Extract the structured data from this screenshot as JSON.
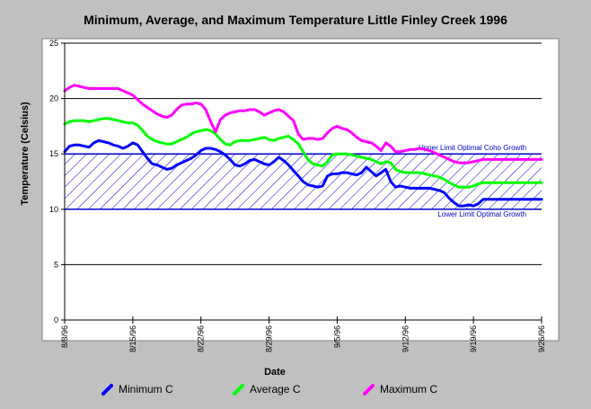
{
  "chart_data": {
    "type": "line",
    "title": "Minimum, Average, and Maximum Temperature Little Finley Creek 1996",
    "xlabel": "Date",
    "ylabel": "Temperature (Celsius)",
    "ylim": [
      0,
      25
    ],
    "yticks": [
      0,
      5,
      10,
      15,
      20,
      25
    ],
    "x_start": "8/8/96",
    "x_end": "9/26/96",
    "xticks": [
      {
        "label": "8/8/96",
        "day": 0
      },
      {
        "label": "8/15/96",
        "day": 7
      },
      {
        "label": "8/22/96",
        "day": 14
      },
      {
        "label": "8/29/96",
        "day": 21
      },
      {
        "label": "9/5/96",
        "day": 28
      },
      {
        "label": "9/12/96",
        "day": 35
      },
      {
        "label": "9/19/96",
        "day": 42
      },
      {
        "label": "9/26/96",
        "day": 49
      }
    ],
    "grid": "horizontal",
    "legend_position": "bottom",
    "bands": [
      {
        "name": "Optimal Coho Growth",
        "lower": 10,
        "upper": 15,
        "fill": "hatched",
        "color": "#0000cc",
        "upper_label": "Upper Limit Optimal Coho Growth",
        "lower_label": "Lower Limit Optimal Growth"
      }
    ],
    "series": [
      {
        "name": "Minimum C",
        "color": "#0000ff",
        "x": [
          0,
          0.5,
          1,
          1.5,
          2,
          2.5,
          3,
          3.5,
          4,
          4.5,
          5,
          5.5,
          6,
          6.5,
          7,
          7.5,
          8,
          8.5,
          9,
          9.5,
          10,
          10.5,
          11,
          11.5,
          12,
          12.5,
          13,
          13.5,
          14,
          14.5,
          15,
          15.5,
          16,
          16.5,
          17,
          17.5,
          18,
          18.5,
          19,
          19.5,
          20,
          20.5,
          21,
          21.5,
          22,
          22.5,
          23,
          23.5,
          24,
          24.5,
          25,
          25.5,
          26,
          26.5,
          27,
          27.5,
          28,
          28.5,
          29,
          29.5,
          30,
          30.5,
          31,
          31.5,
          32,
          32.5,
          33,
          33.5,
          34,
          34.5,
          35,
          35.5,
          36,
          36.5,
          37,
          37.5,
          38,
          38.5,
          39,
          39.5,
          40,
          40.5,
          41,
          41.5,
          42,
          42.5,
          43,
          43.5,
          44,
          44.5,
          45,
          45.5,
          46,
          46.5,
          47,
          47.5,
          48,
          48.5,
          49
        ],
        "values": [
          15.2,
          15.7,
          15.8,
          15.8,
          15.7,
          15.6,
          16.0,
          16.2,
          16.1,
          16.0,
          15.8,
          15.7,
          15.5,
          15.7,
          16.0,
          15.8,
          15.2,
          14.6,
          14.1,
          14.0,
          13.8,
          13.6,
          13.7,
          14.0,
          14.2,
          14.4,
          14.6,
          14.9,
          15.3,
          15.5,
          15.5,
          15.4,
          15.2,
          14.9,
          14.5,
          14.0,
          13.9,
          14.1,
          14.4,
          14.5,
          14.3,
          14.1,
          14.0,
          14.3,
          14.7,
          14.4,
          14.0,
          13.5,
          13.0,
          12.5,
          12.2,
          12.1,
          12.0,
          12.1,
          13.0,
          13.2,
          13.2,
          13.3,
          13.3,
          13.2,
          13.1,
          13.3,
          13.8,
          13.4,
          13.0,
          13.3,
          13.6,
          12.5,
          12.0,
          12.1,
          12.0,
          11.9,
          11.9,
          11.9,
          11.9,
          11.9,
          11.8,
          11.7,
          11.5,
          11.0,
          10.6,
          10.3,
          10.3,
          10.4,
          10.3,
          10.5,
          10.9,
          10.9,
          10.9,
          10.9,
          10.9,
          10.9,
          10.9,
          10.9,
          10.9,
          10.9,
          10.9,
          10.9,
          10.9
        ]
      },
      {
        "name": "Average C",
        "color": "#00ff00",
        "x": [
          0,
          0.5,
          1,
          1.5,
          2,
          2.5,
          3,
          3.5,
          4,
          4.5,
          5,
          5.5,
          6,
          6.5,
          7,
          7.5,
          8,
          8.5,
          9,
          9.5,
          10,
          10.5,
          11,
          11.5,
          12,
          12.5,
          13,
          13.5,
          14,
          14.5,
          15,
          15.5,
          16,
          16.5,
          17,
          17.5,
          18,
          18.5,
          19,
          19.5,
          20,
          20.5,
          21,
          21.5,
          22,
          22.5,
          23,
          23.5,
          24,
          24.5,
          25,
          25.5,
          26,
          26.5,
          27,
          27.5,
          28,
          28.5,
          29,
          29.5,
          30,
          30.5,
          31,
          31.5,
          32,
          32.5,
          33,
          33.5,
          34,
          34.5,
          35,
          35.5,
          36,
          36.5,
          37,
          37.5,
          38,
          38.5,
          39,
          39.5,
          40,
          40.5,
          41,
          41.5,
          42,
          42.5,
          43,
          43.5,
          44,
          44.5,
          45,
          45.5,
          46,
          46.5,
          47,
          47.5,
          48,
          48.5,
          49
        ],
        "values": [
          17.7,
          17.9,
          18.0,
          18.0,
          18.0,
          17.9,
          18.0,
          18.1,
          18.2,
          18.2,
          18.1,
          18.0,
          17.9,
          17.8,
          17.8,
          17.6,
          17.1,
          16.6,
          16.3,
          16.1,
          16.0,
          15.9,
          15.9,
          16.1,
          16.3,
          16.5,
          16.8,
          17.0,
          17.1,
          17.2,
          17.1,
          16.8,
          16.3,
          15.9,
          15.8,
          16.1,
          16.2,
          16.2,
          16.2,
          16.3,
          16.4,
          16.5,
          16.3,
          16.2,
          16.4,
          16.5,
          16.6,
          16.3,
          15.9,
          15.2,
          14.5,
          14.1,
          14.0,
          13.9,
          14.3,
          14.9,
          15.0,
          15.0,
          15.0,
          14.9,
          14.8,
          14.7,
          14.6,
          14.5,
          14.3,
          14.1,
          14.3,
          14.2,
          13.6,
          13.4,
          13.3,
          13.3,
          13.3,
          13.3,
          13.2,
          13.1,
          13.0,
          12.9,
          12.7,
          12.4,
          12.2,
          12.0,
          12.0,
          12.0,
          12.1,
          12.3,
          12.4,
          12.4,
          12.4,
          12.4,
          12.4,
          12.4,
          12.4,
          12.4,
          12.4,
          12.4,
          12.4,
          12.4,
          12.4
        ]
      },
      {
        "name": "Maximum C",
        "color": "#ff00ff",
        "x": [
          0,
          0.5,
          1,
          1.5,
          2,
          2.5,
          3,
          3.5,
          4,
          4.5,
          5,
          5.5,
          6,
          6.5,
          7,
          7.5,
          8,
          8.5,
          9,
          9.5,
          10,
          10.5,
          11,
          11.5,
          12,
          12.5,
          13,
          13.5,
          14,
          14.5,
          15,
          15.5,
          16,
          16.5,
          17,
          17.5,
          18,
          18.5,
          19,
          19.5,
          20,
          20.5,
          21,
          21.5,
          22,
          22.5,
          23,
          23.5,
          24,
          24.5,
          25,
          25.5,
          26,
          26.5,
          27,
          27.5,
          28,
          28.5,
          29,
          29.5,
          30,
          30.5,
          31,
          31.5,
          32,
          32.5,
          33,
          33.5,
          34,
          34.5,
          35,
          35.5,
          36,
          36.5,
          37,
          37.5,
          38,
          38.5,
          39,
          39.5,
          40,
          40.5,
          41,
          41.5,
          42,
          42.5,
          43,
          43.5,
          44,
          44.5,
          45,
          45.5,
          46,
          46.5,
          47,
          47.5,
          48,
          48.5,
          49
        ],
        "values": [
          20.7,
          21.0,
          21.2,
          21.1,
          21.0,
          20.9,
          20.9,
          20.9,
          20.9,
          20.9,
          20.9,
          20.9,
          20.7,
          20.5,
          20.3,
          19.9,
          19.5,
          19.2,
          18.9,
          18.6,
          18.4,
          18.3,
          18.5,
          19.0,
          19.4,
          19.5,
          19.5,
          19.6,
          19.5,
          19.0,
          17.9,
          17.0,
          18.1,
          18.5,
          18.7,
          18.8,
          18.9,
          18.9,
          19.0,
          19.0,
          18.8,
          18.5,
          18.7,
          18.9,
          19.0,
          18.8,
          18.4,
          18.0,
          16.8,
          16.3,
          16.4,
          16.4,
          16.3,
          16.4,
          16.9,
          17.3,
          17.5,
          17.3,
          17.2,
          16.9,
          16.5,
          16.2,
          16.1,
          16.0,
          15.7,
          15.3,
          16.0,
          15.7,
          15.2,
          15.2,
          15.3,
          15.4,
          15.4,
          15.5,
          15.4,
          15.3,
          15.1,
          14.9,
          14.7,
          14.5,
          14.3,
          14.2,
          14.2,
          14.2,
          14.3,
          14.4,
          14.5,
          14.5,
          14.5,
          14.5,
          14.5,
          14.5,
          14.5,
          14.5,
          14.5,
          14.5,
          14.5,
          14.5,
          14.5
        ]
      }
    ]
  }
}
